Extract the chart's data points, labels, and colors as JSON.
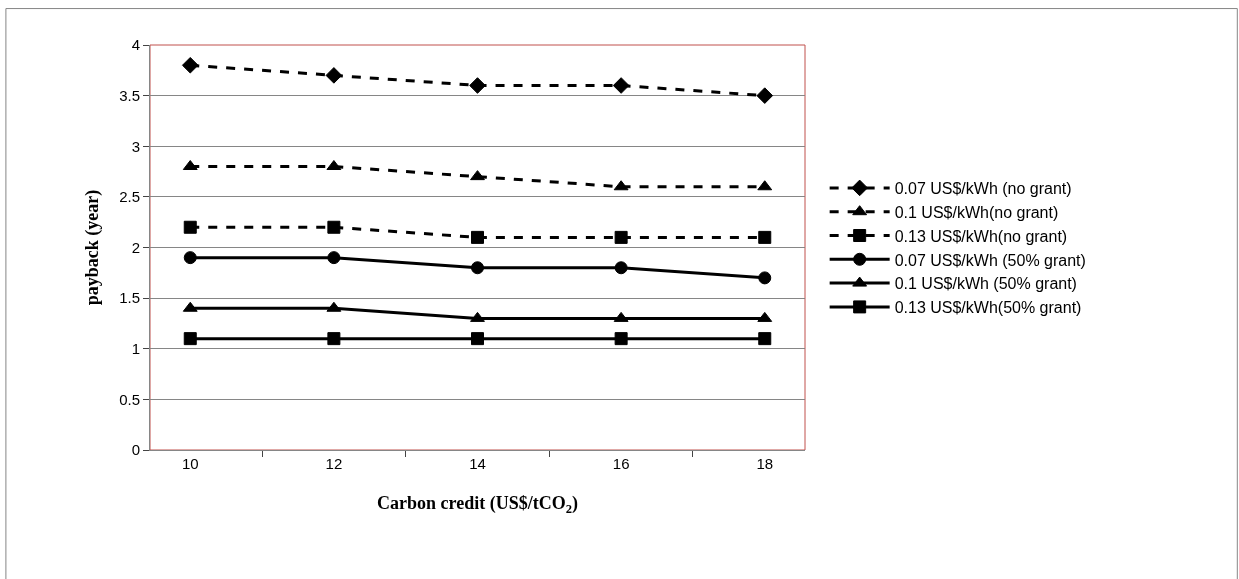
{
  "chart_data": {
    "type": "line",
    "xlabel": "Carbon credit (US$/tCO$_{2}$)",
    "ylabel": "payback (year)",
    "categories": [
      "10",
      "12",
      "14",
      "16",
      "18"
    ],
    "series": [
      {
        "name": "0.07 US$/kWh (no grant)",
        "color": "#000000",
        "marker": "diamond",
        "line_style": "dashed",
        "values": [
          3.8,
          3.7,
          3.6,
          3.6,
          3.5
        ]
      },
      {
        "name": "0.1 US$/kWh(no grant)",
        "color": "#000000",
        "marker": "triangle",
        "line_style": "dashed",
        "values": [
          2.8,
          2.8,
          2.7,
          2.6,
          2.6
        ]
      },
      {
        "name": "0.13 US$/kWh(no grant)",
        "color": "#000000",
        "marker": "square",
        "line_style": "dashed",
        "values": [
          2.2,
          2.2,
          2.1,
          2.1,
          2.1
        ]
      },
      {
        "name": "0.07 US$/kWh (50% grant)",
        "color": "#000000",
        "marker": "circle",
        "line_style": "solid",
        "values": [
          1.9,
          1.9,
          1.8,
          1.8,
          1.7
        ]
      },
      {
        "name": "0.1 US$/kWh (50% grant)",
        "color": "#000000",
        "marker": "triangle",
        "line_style": "solid",
        "values": [
          1.4,
          1.4,
          1.3,
          1.3,
          1.3
        ]
      },
      {
        "name": "0.13 US$/kWh(50% grant)",
        "color": "#000000",
        "marker": "square",
        "line_style": "solid",
        "values": [
          1.1,
          1.1,
          1.1,
          1.1,
          1.1
        ]
      }
    ],
    "ylim": [
      0,
      4
    ],
    "yticks": [
      0,
      0.5,
      1,
      1.5,
      2,
      2.5,
      3,
      3.5,
      4
    ],
    "grid": "y",
    "legend": "right"
  }
}
